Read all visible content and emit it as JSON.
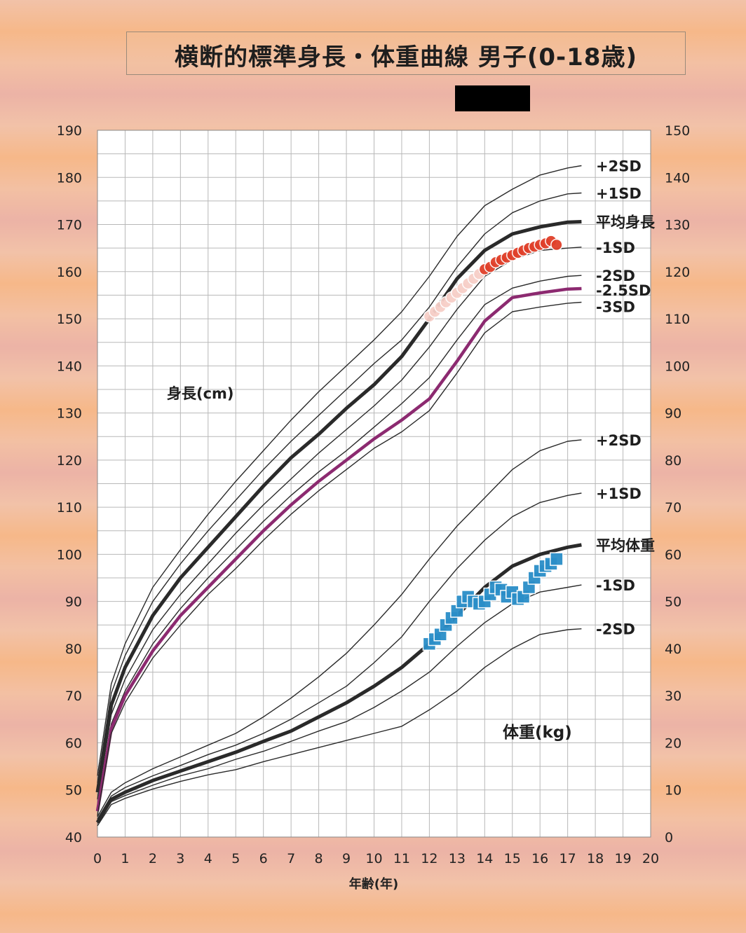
{
  "title": "横断的標準身長・体重曲線 男子(0-18歳)",
  "chart_data": {
    "type": "line",
    "xlabel": "年齢(年)",
    "xlim": [
      0,
      20
    ],
    "x_ticks": [
      "0",
      "1",
      "2",
      "3",
      "4",
      "5",
      "6",
      "7",
      "8",
      "9",
      "10",
      "11",
      "12",
      "13",
      "14",
      "15",
      "16",
      "17",
      "18",
      "19",
      "20"
    ],
    "left_axis": {
      "label": "身長(cm)",
      "ylim": [
        40,
        190
      ],
      "ticks": [
        "190",
        "180",
        "170",
        "160",
        "150",
        "140",
        "130",
        "120",
        "110",
        "100",
        "90",
        "80",
        "70",
        "60",
        "50",
        "40"
      ]
    },
    "right_axis": {
      "label": "体重(kg)",
      "ylim": [
        0,
        150
      ],
      "ticks": [
        "150",
        "140",
        "130",
        "120",
        "110",
        "100",
        "90",
        "80",
        "70",
        "60",
        "50",
        "40",
        "30",
        "20",
        "10",
        "0"
      ]
    },
    "grid": true,
    "ages": [
      0,
      0.5,
      1,
      2,
      3,
      4,
      5,
      6,
      7,
      8,
      9,
      10,
      11,
      12,
      13,
      14,
      15,
      16,
      17,
      17.5
    ],
    "height_series": [
      {
        "name": "+2SD",
        "values": [
          53,
          72.5,
          81,
          93,
          101,
          108.5,
          115.5,
          122,
          128.5,
          134.5,
          140,
          145.5,
          151.5,
          159,
          167.5,
          174,
          177.5,
          180.5,
          182,
          182.5
        ]
      },
      {
        "name": "+1SD",
        "values": [
          51.5,
          70.5,
          78.5,
          90,
          98,
          105,
          111.5,
          118,
          124,
          129.5,
          135,
          140.5,
          145.5,
          152.5,
          161,
          168,
          172.5,
          175,
          176.5,
          176.7
        ]
      },
      {
        "name": "平均身長",
        "values": [
          49.5,
          68,
          76,
          87,
          95,
          101.5,
          108,
          114.5,
          120.5,
          125.5,
          131,
          136,
          142,
          150,
          158.5,
          164.5,
          168,
          169.5,
          170.5,
          170.6
        ]
      },
      {
        "name": "-1SD",
        "values": [
          48,
          66,
          73.5,
          84,
          91.5,
          98,
          104.5,
          110.5,
          116,
          121.5,
          126.5,
          131.5,
          137,
          144,
          152,
          159,
          162.5,
          164.5,
          165,
          165.2
        ]
      },
      {
        "name": "-2SD",
        "values": [
          46.5,
          64,
          71,
          81,
          88.5,
          95,
          101,
          107,
          112.5,
          117.5,
          122,
          127,
          132,
          137.5,
          145.5,
          153,
          156.5,
          158,
          159,
          159.2
        ]
      },
      {
        "name": "-2.5SD",
        "values": [
          45.5,
          63,
          70,
          79.5,
          87,
          93,
          99,
          105,
          110.5,
          115.5,
          120,
          124.5,
          128.5,
          133,
          141,
          149.5,
          154.5,
          155.5,
          156.3,
          156.4
        ]
      },
      {
        "name": "-3SD",
        "values": [
          44.5,
          62,
          68.5,
          78,
          85,
          91.5,
          97,
          103,
          108.5,
          113.5,
          118,
          122.5,
          126,
          130.5,
          138.5,
          147,
          151.5,
          152.5,
          153.3,
          153.5
        ]
      }
    ],
    "weight_series": [
      {
        "name": "+2SD",
        "values": [
          4.3,
          9.5,
          11.5,
          14.5,
          17,
          19.5,
          22,
          25.5,
          29.5,
          34,
          39,
          45,
          51.5,
          59,
          66,
          72,
          78,
          82,
          84,
          84.3
        ]
      },
      {
        "name": "+1SD",
        "values": [
          3.8,
          8.7,
          10.5,
          13,
          15.2,
          17.5,
          19.5,
          22,
          25,
          28.5,
          32,
          37,
          42.5,
          50,
          57,
          63,
          68,
          71,
          72.5,
          73
        ]
      },
      {
        "name": "平均体重",
        "values": [
          3.1,
          8,
          9.5,
          12,
          14,
          16,
          18,
          20.3,
          22.5,
          25.5,
          28.5,
          32,
          36,
          41,
          47,
          53,
          57.5,
          60,
          61.5,
          62
        ]
      },
      {
        "name": "-1SD",
        "values": [
          2.9,
          7.5,
          8.8,
          11,
          13,
          14.5,
          16.5,
          18.2,
          20.3,
          22.5,
          24.5,
          27.5,
          31,
          35,
          40.5,
          45.5,
          49.5,
          52,
          53,
          53.5
        ]
      },
      {
        "name": "-2SD",
        "values": [
          2.4,
          6.9,
          8.2,
          10.2,
          11.8,
          13.2,
          14.3,
          16,
          17.5,
          19,
          20.5,
          22,
          23.5,
          27,
          31,
          36,
          40,
          43,
          44,
          44.2
        ]
      }
    ],
    "height_labels": {
      "p2": "+2SD",
      "p1": "+1SD",
      "mean": "平均身長",
      "m1": "-1SD",
      "m2": "-2SD",
      "m25": "-2.5SD",
      "m3": "-3SD"
    },
    "weight_labels": {
      "p2": "+2SD",
      "p1": "+1SD",
      "mean": "平均体重",
      "m1": "-1SD",
      "m2": "-2SD"
    },
    "height_measurements": {
      "age": [
        12,
        12.2,
        12.4,
        12.6,
        12.8,
        13,
        13.2,
        13.4,
        13.6,
        13.8,
        14,
        14.2,
        14.4,
        14.6,
        14.8,
        15,
        15.2,
        15.4,
        15.6,
        15.8,
        16,
        16.2,
        16.4,
        16.6
      ],
      "height": [
        150.5,
        151.5,
        152.5,
        153.5,
        154.5,
        155.5,
        156.5,
        157.5,
        158.5,
        159.5,
        160.5,
        161,
        162,
        162.5,
        163,
        163.5,
        164,
        164.5,
        165,
        165.3,
        165.7,
        166,
        166.5,
        165.7
      ]
    },
    "weight_measurements": {
      "age": [
        12,
        12.2,
        12.4,
        12.6,
        12.8,
        13,
        13.2,
        13.4,
        13.6,
        13.8,
        14,
        14.2,
        14.4,
        14.6,
        14.8,
        15,
        15.2,
        15.4,
        15.6,
        15.8,
        16,
        16.2,
        16.4,
        16.6
      ],
      "weight": [
        41,
        42,
        43,
        45,
        46.5,
        48,
        50,
        51,
        50,
        49.5,
        50,
        51.5,
        53,
        52.5,
        51,
        52,
        50.5,
        51,
        53,
        55,
        56.5,
        57.5,
        58,
        59
      ]
    },
    "colors": {
      "curve": "#2a2a2a",
      "mean_curve": "#2a2a2a",
      "m25_curve": "#8c2a70",
      "m25_label": "#e03a20",
      "height_points": "#e0402a",
      "weight_points": "#2a8ec8",
      "plot_background": "#ffffff",
      "grid": "#b8b8b8"
    }
  }
}
